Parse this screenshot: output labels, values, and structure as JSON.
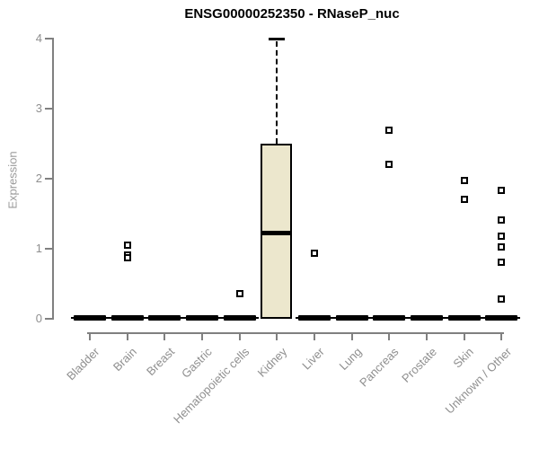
{
  "title": "ENSG00000252350 - RNaseP_nuc",
  "ylabel": "Expression",
  "colors": {
    "box_fill": "#ece7cd",
    "box_stroke": "#000000",
    "axis": "#808080",
    "axis_label": "#8f8f8f",
    "title": "#000000",
    "background": "#ffffff"
  },
  "chart_data": {
    "type": "boxplot",
    "title": "ENSG00000252350 - RNaseP_nuc",
    "xlabel": "",
    "ylabel": "Expression",
    "ylim": [
      0,
      4
    ],
    "yticks": [
      "0",
      "1",
      "2",
      "3",
      "4"
    ],
    "grid": false,
    "legend": "none",
    "categories": [
      "Bladder",
      "Brain",
      "Breast",
      "Gastric",
      "Hematopoietic cells",
      "Kidney",
      "Liver",
      "Lung",
      "Pancreas",
      "Prostate",
      "Skin",
      "Unknown / Other"
    ],
    "boxes": [
      {
        "name": "Bladder",
        "whisker_low": 0,
        "q1": 0,
        "median": 0,
        "q3": 0,
        "whisker_high": 0,
        "outliers": []
      },
      {
        "name": "Brain",
        "whisker_low": 0,
        "q1": 0,
        "median": 0,
        "q3": 0,
        "whisker_high": 0,
        "outliers": [
          1.05,
          0.91,
          0.87
        ]
      },
      {
        "name": "Breast",
        "whisker_low": 0,
        "q1": 0,
        "median": 0,
        "q3": 0,
        "whisker_high": 0,
        "outliers": []
      },
      {
        "name": "Gastric",
        "whisker_low": 0,
        "q1": 0,
        "median": 0,
        "q3": 0,
        "whisker_high": 0,
        "outliers": []
      },
      {
        "name": "Hematopoietic cells",
        "whisker_low": 0,
        "q1": 0,
        "median": 0,
        "q3": 0,
        "whisker_high": 0,
        "outliers": [
          0.36
        ]
      },
      {
        "name": "Kidney",
        "whisker_low": 0,
        "q1": 0,
        "median": 1.23,
        "q3": 2.5,
        "whisker_high": 4,
        "outliers": []
      },
      {
        "name": "Liver",
        "whisker_low": 0,
        "q1": 0,
        "median": 0,
        "q3": 0,
        "whisker_high": 0,
        "outliers": [
          0.94
        ]
      },
      {
        "name": "Lung",
        "whisker_low": 0,
        "q1": 0,
        "median": 0,
        "q3": 0,
        "whisker_high": 0,
        "outliers": []
      },
      {
        "name": "Pancreas",
        "whisker_low": 0,
        "q1": 0,
        "median": 0,
        "q3": 0,
        "whisker_high": 0,
        "outliers": [
          2.69,
          2.2
        ]
      },
      {
        "name": "Prostate",
        "whisker_low": 0,
        "q1": 0,
        "median": 0,
        "q3": 0,
        "whisker_high": 0,
        "outliers": []
      },
      {
        "name": "Skin",
        "whisker_low": 0,
        "q1": 0,
        "median": 0,
        "q3": 0,
        "whisker_high": 0,
        "outliers": [
          1.97,
          1.7
        ]
      },
      {
        "name": "Unknown / Other",
        "whisker_low": 0,
        "q1": 0,
        "median": 0,
        "q3": 0,
        "whisker_high": 0,
        "outliers": [
          1.83,
          1.41,
          1.18,
          1.03,
          0.81,
          0.28
        ]
      }
    ]
  }
}
